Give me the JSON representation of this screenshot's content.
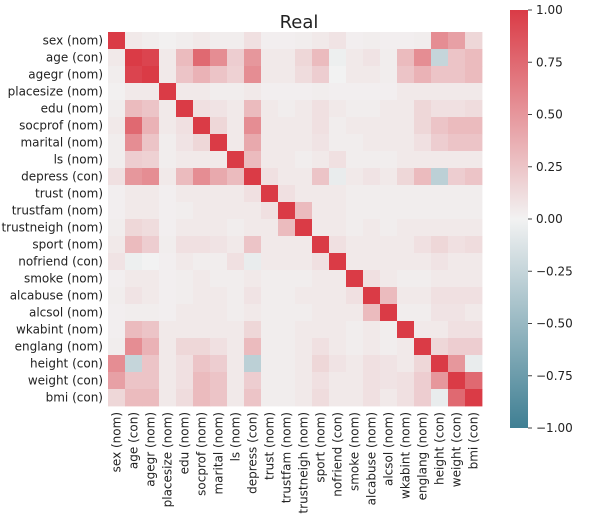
{
  "chart_data": {
    "type": "heatmap",
    "title": "Real",
    "labels": [
      "sex (nom)",
      "age (con)",
      "agegr (nom)",
      "placesize (nom)",
      "edu (nom)",
      "socprof (nom)",
      "marital (nom)",
      "ls (nom)",
      "depress (con)",
      "trust (nom)",
      "trustfam (nom)",
      "trustneigh (nom)",
      "sport (nom)",
      "nofriend (con)",
      "smoke (nom)",
      "alcabuse (nom)",
      "alcsol (nom)",
      "wkabint (nom)",
      "englang (nom)",
      "height (con)",
      "weight (con)",
      "bmi (con)"
    ],
    "matrix": [
      [
        1.0,
        0.05,
        0.03,
        0.01,
        0.03,
        0.05,
        0.03,
        0.03,
        0.1,
        0.02,
        0.02,
        0.03,
        0.05,
        0.08,
        0.02,
        0.03,
        0.02,
        0.02,
        0.03,
        0.55,
        0.45,
        0.15
      ],
      [
        0.05,
        1.0,
        0.95,
        0.05,
        0.3,
        0.75,
        0.55,
        0.2,
        0.5,
        0.05,
        0.05,
        0.15,
        0.3,
        -0.03,
        0.05,
        0.08,
        0.03,
        0.3,
        0.55,
        -0.25,
        0.25,
        0.3
      ],
      [
        0.03,
        0.95,
        1.0,
        0.05,
        0.25,
        0.35,
        0.25,
        0.18,
        0.55,
        0.05,
        0.05,
        0.12,
        0.2,
        0.0,
        0.05,
        0.05,
        0.03,
        0.25,
        0.35,
        0.25,
        0.25,
        0.3
      ],
      [
        0.01,
        0.05,
        0.05,
        1.0,
        0.05,
        0.05,
        0.03,
        0.03,
        0.05,
        0.02,
        0.02,
        0.02,
        0.03,
        0.02,
        0.02,
        0.02,
        0.02,
        0.05,
        0.05,
        0.05,
        0.05,
        0.05
      ],
      [
        0.03,
        0.3,
        0.25,
        0.05,
        1.0,
        0.1,
        0.08,
        0.05,
        0.3,
        0.05,
        0.03,
        0.05,
        0.1,
        0.05,
        0.03,
        0.03,
        0.05,
        0.05,
        0.15,
        0.1,
        0.1,
        0.12
      ],
      [
        0.05,
        0.75,
        0.35,
        0.05,
        0.1,
        1.0,
        0.15,
        0.05,
        0.55,
        0.05,
        0.05,
        0.05,
        0.1,
        0.03,
        0.05,
        0.05,
        0.05,
        0.05,
        0.15,
        0.25,
        0.3,
        0.3
      ],
      [
        0.03,
        0.55,
        0.25,
        0.03,
        0.08,
        0.15,
        1.0,
        0.05,
        0.4,
        0.05,
        0.05,
        0.05,
        0.08,
        0.03,
        0.03,
        0.05,
        0.05,
        0.05,
        0.1,
        0.2,
        0.25,
        0.25
      ],
      [
        0.03,
        0.2,
        0.18,
        0.03,
        0.05,
        0.05,
        0.05,
        1.0,
        0.3,
        0.05,
        0.05,
        0.03,
        0.05,
        0.1,
        0.03,
        0.03,
        0.03,
        0.05,
        0.05,
        0.05,
        0.05,
        0.05
      ],
      [
        0.1,
        0.5,
        0.55,
        0.05,
        0.3,
        0.55,
        0.4,
        0.3,
        1.0,
        0.1,
        0.05,
        0.05,
        0.25,
        -0.05,
        0.05,
        0.08,
        0.05,
        0.15,
        0.3,
        -0.3,
        0.2,
        0.25
      ],
      [
        0.02,
        0.05,
        0.05,
        0.02,
        0.05,
        0.05,
        0.05,
        0.05,
        0.1,
        1.0,
        0.1,
        0.05,
        0.05,
        0.05,
        0.03,
        0.03,
        0.03,
        0.03,
        0.03,
        0.03,
        0.03,
        0.03
      ],
      [
        0.02,
        0.05,
        0.05,
        0.02,
        0.03,
        0.05,
        0.05,
        0.05,
        0.05,
        0.1,
        1.0,
        0.3,
        0.05,
        0.05,
        0.03,
        0.03,
        0.03,
        0.03,
        0.03,
        0.03,
        0.03,
        0.03
      ],
      [
        0.03,
        0.15,
        0.12,
        0.02,
        0.05,
        0.05,
        0.05,
        0.03,
        0.05,
        0.05,
        0.3,
        1.0,
        0.05,
        0.05,
        0.03,
        0.05,
        0.03,
        0.05,
        0.05,
        0.05,
        0.05,
        0.05
      ],
      [
        0.05,
        0.3,
        0.2,
        0.03,
        0.1,
        0.1,
        0.08,
        0.05,
        0.25,
        0.05,
        0.05,
        0.05,
        1.0,
        0.1,
        0.05,
        0.05,
        0.05,
        0.05,
        0.1,
        0.15,
        0.1,
        0.12
      ],
      [
        0.08,
        -0.03,
        0.0,
        0.02,
        0.05,
        0.03,
        0.03,
        0.1,
        -0.05,
        0.05,
        0.05,
        0.05,
        0.1,
        1.0,
        0.05,
        0.05,
        0.05,
        0.05,
        0.05,
        0.08,
        0.05,
        0.05
      ],
      [
        0.02,
        0.05,
        0.05,
        0.02,
        0.03,
        0.05,
        0.03,
        0.03,
        0.05,
        0.03,
        0.03,
        0.03,
        0.05,
        0.05,
        1.0,
        0.1,
        0.05,
        0.03,
        0.03,
        0.05,
        0.05,
        0.05
      ],
      [
        0.03,
        0.08,
        0.05,
        0.02,
        0.03,
        0.05,
        0.05,
        0.03,
        0.08,
        0.03,
        0.03,
        0.05,
        0.05,
        0.05,
        0.1,
        1.0,
        0.3,
        0.05,
        0.05,
        0.1,
        0.1,
        0.1
      ],
      [
        0.02,
        0.03,
        0.03,
        0.02,
        0.05,
        0.05,
        0.05,
        0.03,
        0.05,
        0.03,
        0.03,
        0.03,
        0.05,
        0.05,
        0.05,
        0.3,
        1.0,
        0.03,
        0.03,
        0.08,
        0.08,
        0.05
      ],
      [
        0.02,
        0.3,
        0.25,
        0.05,
        0.05,
        0.05,
        0.05,
        0.05,
        0.15,
        0.03,
        0.03,
        0.05,
        0.05,
        0.05,
        0.03,
        0.05,
        0.03,
        1.0,
        0.05,
        0.05,
        0.1,
        0.1
      ],
      [
        0.03,
        0.55,
        0.35,
        0.05,
        0.15,
        0.15,
        0.1,
        0.05,
        0.3,
        0.03,
        0.03,
        0.05,
        0.1,
        0.05,
        0.03,
        0.05,
        0.03,
        0.05,
        1.0,
        0.15,
        0.2,
        0.2
      ],
      [
        0.55,
        -0.25,
        0.25,
        0.05,
        0.1,
        0.25,
        0.2,
        0.05,
        -0.3,
        0.03,
        0.03,
        0.05,
        0.15,
        0.08,
        0.05,
        0.1,
        0.08,
        0.05,
        0.15,
        1.0,
        0.5,
        -0.05
      ],
      [
        0.45,
        0.25,
        0.25,
        0.05,
        0.1,
        0.3,
        0.25,
        0.05,
        0.2,
        0.03,
        0.03,
        0.05,
        0.1,
        0.05,
        0.05,
        0.1,
        0.08,
        0.1,
        0.2,
        0.5,
        1.0,
        0.75
      ],
      [
        0.15,
        0.3,
        0.3,
        0.05,
        0.12,
        0.3,
        0.25,
        0.05,
        0.25,
        0.03,
        0.03,
        0.05,
        0.12,
        0.05,
        0.05,
        0.1,
        0.05,
        0.1,
        0.2,
        -0.05,
        0.75,
        1.0
      ]
    ],
    "colorbar": {
      "min": -1.0,
      "max": 1.0,
      "ticks": [
        "1.00",
        "0.75",
        "0.50",
        "0.25",
        "0.00",
        "−0.25",
        "−0.50",
        "−0.75",
        "−1.00"
      ],
      "tick_values": [
        1.0,
        0.75,
        0.5,
        0.25,
        0.0,
        -0.25,
        -0.5,
        -0.75,
        -1.0
      ],
      "color_low": "#3f7f93",
      "color_mid": "#f2f2f2",
      "color_high": "#da3b46"
    },
    "grid": false
  }
}
